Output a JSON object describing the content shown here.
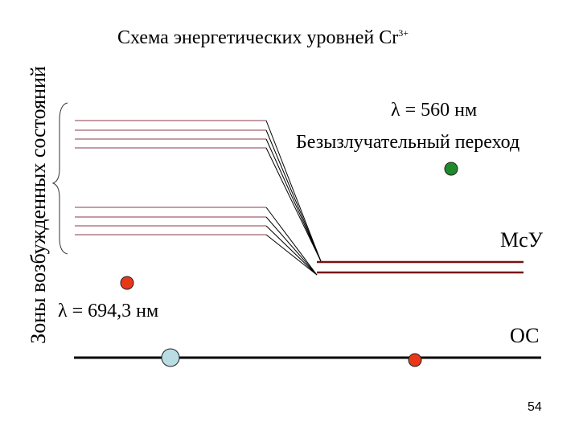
{
  "title": {
    "text": "Схема энергетических уровней Cr",
    "superscript": "3+"
  },
  "vertical_label": "Зоны возбужденных состояний",
  "labels": {
    "nonradiative": "Безызлучательный переход",
    "lambda_green": "λ = 560 нм",
    "lambda_red": "λ = 694,3 нм",
    "metastable": "МсУ",
    "ground": "ОС"
  },
  "page_number": "54",
  "colors": {
    "level_line": "#8b3a4a",
    "metastable": "#7a1010",
    "red_dot": "#e8381a",
    "green_dot": "#1f8a2a",
    "blue_dot": "#b9dde3"
  }
}
